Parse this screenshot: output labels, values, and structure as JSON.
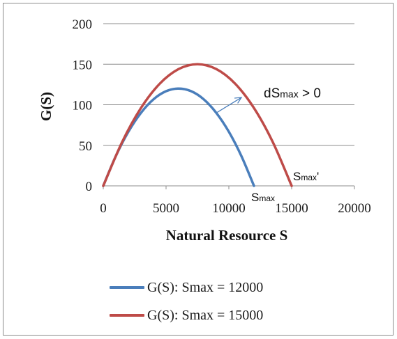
{
  "chart_data": {
    "type": "line",
    "xlabel": "Natural Resource S",
    "ylabel": "G(S)",
    "xlim": [
      0,
      20000
    ],
    "ylim": [
      0,
      200
    ],
    "xticks": [
      "0",
      "5000",
      "10000",
      "15000",
      "20000"
    ],
    "yticks": [
      "0",
      "50",
      "100",
      "150",
      "200"
    ],
    "grid": "horizontal",
    "legend_position": "bottom",
    "series": [
      {
        "name": "G(S): Smax = 12000",
        "color": "#4a7ebb",
        "x": [
          0,
          1000,
          2000,
          3000,
          4000,
          5000,
          6000,
          7000,
          8000,
          9000,
          10000,
          11000,
          12000
        ],
        "y": [
          0,
          36.7,
          66.7,
          90,
          106.7,
          116.7,
          120,
          116.7,
          106.7,
          90,
          66.7,
          36.7,
          0
        ]
      },
      {
        "name": "G(S): Smax = 15000",
        "color": "#be4b48",
        "x": [
          0,
          1500,
          3000,
          4500,
          6000,
          7500,
          9000,
          10500,
          12000,
          13500,
          15000
        ],
        "y": [
          0,
          54,
          96,
          126,
          144,
          150,
          144,
          126,
          96,
          54,
          0
        ]
      }
    ],
    "annotations": {
      "dsmax": {
        "main": "dS",
        "sub": "max",
        "rest": " > 0",
        "arrow_from": [
          9000,
          90
        ],
        "arrow_to": [
          11000,
          109
        ]
      },
      "smax": {
        "main": "S",
        "sub": "max",
        "anchor": [
          12000,
          0
        ]
      },
      "smax_prime": {
        "main": "S",
        "sub": "max",
        "prime": "'",
        "anchor": [
          15000,
          0
        ]
      }
    }
  }
}
